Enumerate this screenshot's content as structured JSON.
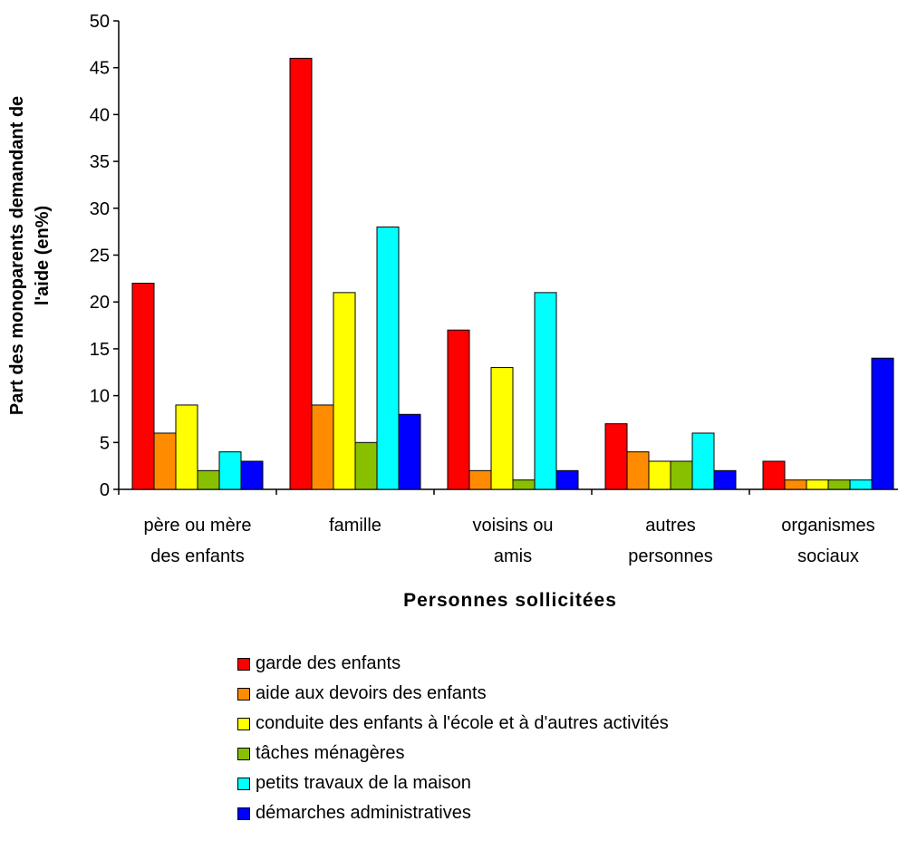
{
  "chart_data": {
    "type": "bar",
    "xlabel": "Personnes sollicitées",
    "ylabel": "Part des monoparents demandant de l'aide (en%)",
    "ylim": [
      0,
      50
    ],
    "yticks": [
      "0",
      "5",
      "10",
      "15",
      "20",
      "25",
      "30",
      "35",
      "40",
      "45",
      "50"
    ],
    "grid": false,
    "legend_placement": "bottom",
    "categories": [
      [
        "père ou mère",
        "des enfants"
      ],
      [
        "famille"
      ],
      [
        "voisins ou",
        "amis"
      ],
      [
        "autres",
        "personnes"
      ],
      [
        "organismes",
        "sociaux"
      ]
    ],
    "series": [
      {
        "name": "garde des enfants",
        "color": "#ff0000",
        "values": [
          22,
          46,
          17,
          7,
          3
        ]
      },
      {
        "name": "aide aux devoirs des enfants",
        "color": "#ff8c00",
        "values": [
          6,
          9,
          2,
          4,
          1
        ]
      },
      {
        "name": "conduite des enfants à l'école et à d'autres activités",
        "color": "#ffff00",
        "values": [
          9,
          21,
          13,
          3,
          1
        ]
      },
      {
        "name": "tâches ménagères",
        "color": "#88c000",
        "values": [
          2,
          5,
          1,
          3,
          1
        ]
      },
      {
        "name": "petits travaux de la maison",
        "color": "#00ffff",
        "values": [
          4,
          28,
          21,
          6,
          1
        ]
      },
      {
        "name": "démarches administratives",
        "color": "#0000ff",
        "values": [
          3,
          8,
          2,
          2,
          14
        ]
      }
    ]
  }
}
